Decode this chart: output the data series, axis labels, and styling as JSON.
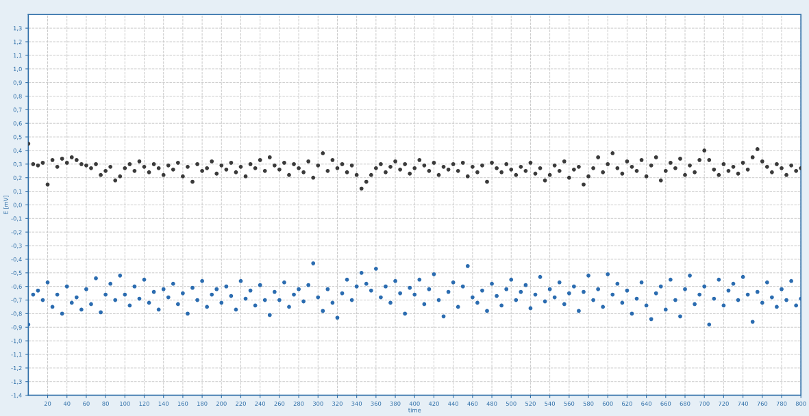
{
  "chart_data": {
    "type": "scatter",
    "xlabel": "time",
    "ylabel": "E [mV]",
    "marker": "circle",
    "grid": true,
    "x": [
      0,
      5,
      10,
      15,
      20,
      25,
      30,
      35,
      40,
      45,
      50,
      55,
      60,
      65,
      70,
      75,
      80,
      85,
      90,
      95,
      100,
      105,
      110,
      115,
      120,
      125,
      130,
      135,
      140,
      145,
      150,
      155,
      160,
      165,
      170,
      175,
      180,
      185,
      190,
      195,
      200,
      205,
      210,
      215,
      220,
      225,
      230,
      235,
      240,
      245,
      250,
      255,
      260,
      265,
      270,
      275,
      280,
      285,
      290,
      295,
      300,
      305,
      310,
      315,
      320,
      325,
      330,
      335,
      340,
      345,
      350,
      355,
      360,
      365,
      370,
      375,
      380,
      385,
      390,
      395,
      400,
      405,
      410,
      415,
      420,
      425,
      430,
      435,
      440,
      445,
      450,
      455,
      460,
      465,
      470,
      475,
      480,
      485,
      490,
      495,
      500,
      505,
      510,
      515,
      520,
      525,
      530,
      535,
      540,
      545,
      550,
      555,
      560,
      565,
      570,
      575,
      580,
      585,
      590,
      595,
      600,
      605,
      610,
      615,
      620,
      625,
      630,
      635,
      640,
      645,
      650,
      655,
      660,
      665,
      670,
      675,
      680,
      685,
      690,
      695,
      700,
      705,
      710,
      715,
      720,
      725,
      730,
      735,
      740,
      745,
      750,
      755,
      760,
      765,
      770,
      775,
      780,
      785,
      790,
      795,
      800
    ],
    "series": [
      {
        "color": "#3a3a3a",
        "values": [
          0.45,
          0.3,
          0.29,
          0.31,
          0.15,
          0.33,
          0.28,
          0.34,
          0.31,
          0.35,
          0.33,
          0.3,
          0.29,
          0.27,
          0.3,
          0.22,
          0.25,
          0.28,
          0.18,
          0.21,
          0.27,
          0.3,
          0.25,
          0.32,
          0.28,
          0.24,
          0.3,
          0.27,
          0.22,
          0.29,
          0.26,
          0.31,
          0.21,
          0.28,
          0.17,
          0.3,
          0.25,
          0.27,
          0.32,
          0.23,
          0.29,
          0.26,
          0.31,
          0.24,
          0.28,
          0.21,
          0.3,
          0.27,
          0.33,
          0.25,
          0.35,
          0.29,
          0.26,
          0.31,
          0.22,
          0.3,
          0.27,
          0.24,
          0.32,
          0.2,
          0.29,
          0.38,
          0.25,
          0.33,
          0.27,
          0.3,
          0.24,
          0.29,
          0.22,
          0.12,
          0.17,
          0.22,
          0.27,
          0.3,
          0.24,
          0.28,
          0.32,
          0.26,
          0.3,
          0.23,
          0.27,
          0.33,
          0.29,
          0.25,
          0.31,
          0.22,
          0.28,
          0.26,
          0.3,
          0.25,
          0.31,
          0.21,
          0.28,
          0.24,
          0.29,
          0.17,
          0.31,
          0.27,
          0.24,
          0.3,
          0.26,
          0.22,
          0.28,
          0.25,
          0.31,
          0.23,
          0.27,
          0.18,
          0.22,
          0.29,
          0.25,
          0.32,
          0.2,
          0.26,
          0.28,
          0.15,
          0.21,
          0.27,
          0.35,
          0.24,
          0.3,
          0.38,
          0.27,
          0.23,
          0.32,
          0.28,
          0.25,
          0.33,
          0.21,
          0.29,
          0.35,
          0.18,
          0.25,
          0.31,
          0.27,
          0.34,
          0.22,
          0.29,
          0.24,
          0.33,
          0.4,
          0.33,
          0.26,
          0.22,
          0.3,
          0.25,
          0.28,
          0.23,
          0.31,
          0.26,
          0.35,
          0.41,
          0.32,
          0.28,
          0.24,
          0.3,
          0.27,
          0.22,
          0.29,
          0.25,
          0.27
        ]
      },
      {
        "color": "#2b6cb0",
        "values": [
          -0.88,
          -0.66,
          -0.63,
          -0.7,
          -0.57,
          -0.75,
          -0.66,
          -0.8,
          -0.6,
          -0.72,
          -0.68,
          -0.77,
          -0.62,
          -0.73,
          -0.54,
          -0.79,
          -0.66,
          -0.58,
          -0.7,
          -0.52,
          -0.66,
          -0.74,
          -0.6,
          -0.69,
          -0.55,
          -0.72,
          -0.64,
          -0.77,
          -0.62,
          -0.68,
          -0.58,
          -0.73,
          -0.65,
          -0.8,
          -0.61,
          -0.7,
          -0.56,
          -0.75,
          -0.66,
          -0.62,
          -0.72,
          -0.6,
          -0.67,
          -0.77,
          -0.56,
          -0.69,
          -0.63,
          -0.74,
          -0.59,
          -0.7,
          -0.81,
          -0.64,
          -0.7,
          -0.57,
          -0.75,
          -0.66,
          -0.62,
          -0.71,
          -0.59,
          -0.43,
          -0.68,
          -0.78,
          -0.62,
          -0.72,
          -0.83,
          -0.65,
          -0.55,
          -0.7,
          -0.6,
          -0.5,
          -0.58,
          -0.63,
          -0.47,
          -0.68,
          -0.6,
          -0.72,
          -0.56,
          -0.65,
          -0.8,
          -0.61,
          -0.66,
          -0.55,
          -0.73,
          -0.62,
          -0.51,
          -0.7,
          -0.82,
          -0.64,
          -0.57,
          -0.75,
          -0.6,
          -0.45,
          -0.68,
          -0.72,
          -0.63,
          -0.78,
          -0.58,
          -0.67,
          -0.74,
          -0.62,
          -0.55,
          -0.7,
          -0.64,
          -0.59,
          -0.76,
          -0.66,
          -0.53,
          -0.71,
          -0.62,
          -0.68,
          -0.57,
          -0.73,
          -0.65,
          -0.6,
          -0.78,
          -0.64,
          -0.52,
          -0.7,
          -0.62,
          -0.75,
          -0.51,
          -0.66,
          -0.58,
          -0.72,
          -0.63,
          -0.8,
          -0.69,
          -0.57,
          -0.74,
          -0.84,
          -0.65,
          -0.6,
          -0.77,
          -0.55,
          -0.7,
          -0.82,
          -0.62,
          -0.52,
          -0.73,
          -0.66,
          -0.6,
          -0.88,
          -0.69,
          -0.55,
          -0.74,
          -0.63,
          -0.58,
          -0.7,
          -0.53,
          -0.66,
          -0.86,
          -0.64,
          -0.72,
          -0.57,
          -0.68,
          -0.75,
          -0.62,
          -0.7,
          -0.56,
          -0.74,
          -0.69
        ]
      }
    ],
    "xlim": [
      0,
      800
    ],
    "xticks": [
      20,
      40,
      60,
      80,
      100,
      120,
      140,
      160,
      180,
      200,
      220,
      240,
      260,
      280,
      300,
      320,
      340,
      360,
      380,
      400,
      420,
      440,
      460,
      480,
      500,
      520,
      540,
      560,
      580,
      600,
      620,
      640,
      660,
      680,
      700,
      720,
      740,
      760,
      780,
      800
    ],
    "ylim": [
      -1.4,
      1.4
    ],
    "yticks": [
      {
        "value": -1.4,
        "label": "-1,4"
      },
      {
        "value": -1.3,
        "label": "-1,3"
      },
      {
        "value": -1.2,
        "label": "-1,2"
      },
      {
        "value": -1.1,
        "label": "-1,1"
      },
      {
        "value": -1.0,
        "label": "-1,0"
      },
      {
        "value": -0.9,
        "label": "-0,9"
      },
      {
        "value": -0.8,
        "label": "-0,8"
      },
      {
        "value": -0.7,
        "label": "-0,7"
      },
      {
        "value": -0.6,
        "label": "-0,6"
      },
      {
        "value": -0.5,
        "label": "-0,5"
      },
      {
        "value": -0.4,
        "label": "-0,4"
      },
      {
        "value": -0.3,
        "label": "-0,3"
      },
      {
        "value": -0.2,
        "label": "-0,2"
      },
      {
        "value": -0.1,
        "label": "-0,1"
      },
      {
        "value": 0.0,
        "label": "0,0"
      },
      {
        "value": 0.1,
        "label": "0,1"
      },
      {
        "value": 0.2,
        "label": "0,2"
      },
      {
        "value": 0.3,
        "label": "0,3"
      },
      {
        "value": 0.4,
        "label": "0,4"
      },
      {
        "value": 0.5,
        "label": "0,5"
      },
      {
        "value": 0.6,
        "label": "0,6"
      },
      {
        "value": 0.7,
        "label": "0,7"
      },
      {
        "value": 0.8,
        "label": "0,8"
      },
      {
        "value": 0.9,
        "label": "0,9"
      },
      {
        "value": 1.0,
        "label": "1,0"
      },
      {
        "value": 1.1,
        "label": "1,1"
      },
      {
        "value": 1.2,
        "label": "1,2"
      },
      {
        "value": 1.3,
        "label": "1,3"
      }
    ]
  }
}
